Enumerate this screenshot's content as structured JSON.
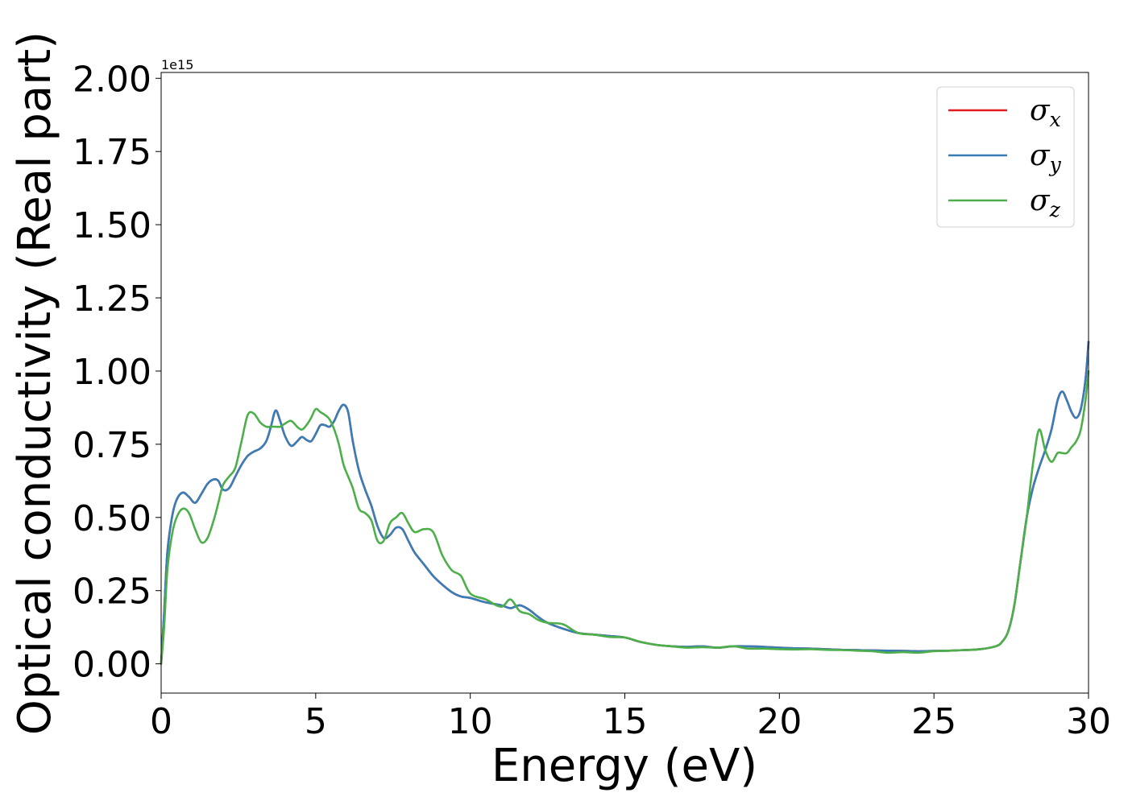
{
  "chart_data": {
    "type": "line",
    "title": "",
    "xlabel": "Energy (eV)",
    "ylabel": "Optical conductivity (Real part)",
    "y_offset_label": "1e15",
    "xlim": [
      0,
      30
    ],
    "ylim": [
      -0.1,
      2.02
    ],
    "x_ticks": [
      0,
      5,
      10,
      15,
      20,
      25,
      30
    ],
    "x_tick_labels": [
      "0",
      "5",
      "10",
      "15",
      "20",
      "25",
      "30"
    ],
    "y_ticks": [
      0.0,
      0.25,
      0.5,
      0.75,
      1.0,
      1.25,
      1.5,
      1.75,
      2.0
    ],
    "y_tick_labels": [
      "0.00",
      "0.25",
      "0.50",
      "0.75",
      "1.00",
      "1.25",
      "1.50",
      "1.75",
      "2.00"
    ],
    "grid": false,
    "legend_position": "top-right",
    "series": [
      {
        "name": "σx",
        "symbol": "σ",
        "subscript": "x",
        "color": "#e41a1c",
        "x": [
          0,
          0.1,
          0.2,
          0.35,
          0.5,
          0.7,
          0.9,
          1.1,
          1.3,
          1.5,
          1.7,
          1.85,
          2.0,
          2.2,
          2.4,
          2.6,
          2.8,
          3.0,
          3.2,
          3.4,
          3.55,
          3.7,
          3.85,
          4.0,
          4.2,
          4.4,
          4.55,
          4.7,
          4.85,
          5.0,
          5.15,
          5.3,
          5.45,
          5.6,
          5.75,
          5.9,
          6.05,
          6.2,
          6.4,
          6.6,
          6.8,
          7.0,
          7.2,
          7.4,
          7.6,
          7.8,
          8.0,
          8.2,
          8.5,
          8.8,
          9.1,
          9.4,
          9.7,
          10.0,
          10.5,
          11.0,
          11.3,
          11.6,
          11.9,
          12.2,
          12.5,
          13.0,
          13.5,
          14.0,
          14.5,
          15.0,
          15.5,
          16.0,
          16.5,
          17.0,
          17.5,
          18.0,
          18.5,
          19.0,
          19.5,
          20.0,
          20.5,
          21.0,
          21.5,
          22.0,
          22.5,
          23.0,
          23.5,
          24.0,
          24.5,
          25.0,
          25.5,
          26.0,
          26.5,
          27.0,
          27.2,
          27.4,
          27.6,
          27.8,
          28.0,
          28.2,
          28.4,
          28.6,
          28.8,
          29.0,
          29.15,
          29.3,
          29.45,
          29.6,
          29.75,
          29.9,
          30.0
        ],
        "y": [
          0.0,
          0.18,
          0.38,
          0.5,
          0.56,
          0.585,
          0.57,
          0.55,
          0.58,
          0.615,
          0.63,
          0.625,
          0.595,
          0.6,
          0.64,
          0.68,
          0.71,
          0.725,
          0.735,
          0.76,
          0.81,
          0.865,
          0.83,
          0.78,
          0.745,
          0.76,
          0.775,
          0.765,
          0.76,
          0.785,
          0.815,
          0.815,
          0.81,
          0.83,
          0.865,
          0.885,
          0.86,
          0.76,
          0.66,
          0.595,
          0.54,
          0.47,
          0.43,
          0.44,
          0.465,
          0.46,
          0.42,
          0.38,
          0.34,
          0.3,
          0.27,
          0.245,
          0.23,
          0.225,
          0.21,
          0.2,
          0.19,
          0.2,
          0.185,
          0.16,
          0.14,
          0.12,
          0.105,
          0.1,
          0.095,
          0.09,
          0.075,
          0.065,
          0.06,
          0.058,
          0.06,
          0.055,
          0.06,
          0.06,
          0.058,
          0.055,
          0.053,
          0.052,
          0.05,
          0.048,
          0.047,
          0.046,
          0.045,
          0.044,
          0.043,
          0.044,
          0.045,
          0.047,
          0.05,
          0.06,
          0.075,
          0.11,
          0.2,
          0.35,
          0.5,
          0.6,
          0.67,
          0.73,
          0.8,
          0.9,
          0.93,
          0.9,
          0.86,
          0.84,
          0.87,
          0.97,
          1.1
        ]
      },
      {
        "name": "σy",
        "symbol": "σ",
        "subscript": "y",
        "color": "#377eb8",
        "x": [
          0,
          0.1,
          0.2,
          0.35,
          0.5,
          0.7,
          0.9,
          1.1,
          1.3,
          1.5,
          1.7,
          1.85,
          2.0,
          2.2,
          2.4,
          2.6,
          2.8,
          3.0,
          3.2,
          3.4,
          3.55,
          3.7,
          3.85,
          4.0,
          4.2,
          4.4,
          4.55,
          4.7,
          4.85,
          5.0,
          5.15,
          5.3,
          5.45,
          5.6,
          5.75,
          5.9,
          6.05,
          6.2,
          6.4,
          6.6,
          6.8,
          7.0,
          7.2,
          7.4,
          7.6,
          7.8,
          8.0,
          8.2,
          8.5,
          8.8,
          9.1,
          9.4,
          9.7,
          10.0,
          10.5,
          11.0,
          11.3,
          11.6,
          11.9,
          12.2,
          12.5,
          13.0,
          13.5,
          14.0,
          14.5,
          15.0,
          15.5,
          16.0,
          16.5,
          17.0,
          17.5,
          18.0,
          18.5,
          19.0,
          19.5,
          20.0,
          20.5,
          21.0,
          21.5,
          22.0,
          22.5,
          23.0,
          23.5,
          24.0,
          24.5,
          25.0,
          25.5,
          26.0,
          26.5,
          27.0,
          27.2,
          27.4,
          27.6,
          27.8,
          28.0,
          28.2,
          28.4,
          28.6,
          28.8,
          29.0,
          29.15,
          29.3,
          29.45,
          29.6,
          29.75,
          29.9,
          30.0
        ],
        "y": [
          0.0,
          0.18,
          0.38,
          0.5,
          0.56,
          0.585,
          0.57,
          0.55,
          0.58,
          0.615,
          0.63,
          0.625,
          0.595,
          0.6,
          0.64,
          0.68,
          0.71,
          0.725,
          0.735,
          0.76,
          0.81,
          0.865,
          0.83,
          0.78,
          0.745,
          0.76,
          0.775,
          0.765,
          0.76,
          0.785,
          0.815,
          0.815,
          0.81,
          0.83,
          0.865,
          0.885,
          0.86,
          0.76,
          0.66,
          0.595,
          0.54,
          0.47,
          0.43,
          0.44,
          0.465,
          0.46,
          0.42,
          0.38,
          0.34,
          0.3,
          0.27,
          0.245,
          0.23,
          0.225,
          0.21,
          0.2,
          0.19,
          0.2,
          0.185,
          0.16,
          0.14,
          0.12,
          0.105,
          0.1,
          0.095,
          0.09,
          0.075,
          0.065,
          0.06,
          0.058,
          0.06,
          0.055,
          0.06,
          0.06,
          0.058,
          0.055,
          0.053,
          0.052,
          0.05,
          0.048,
          0.047,
          0.046,
          0.045,
          0.044,
          0.043,
          0.044,
          0.045,
          0.047,
          0.05,
          0.06,
          0.075,
          0.11,
          0.2,
          0.35,
          0.5,
          0.6,
          0.67,
          0.73,
          0.8,
          0.9,
          0.93,
          0.9,
          0.86,
          0.84,
          0.87,
          0.97,
          1.1
        ]
      },
      {
        "name": "σz",
        "symbol": "σ",
        "subscript": "z",
        "color": "#4daf4a",
        "x": [
          0,
          0.1,
          0.2,
          0.35,
          0.5,
          0.7,
          0.9,
          1.1,
          1.3,
          1.5,
          1.7,
          1.85,
          2.0,
          2.2,
          2.4,
          2.6,
          2.8,
          3.0,
          3.2,
          3.4,
          3.55,
          3.7,
          3.85,
          4.0,
          4.2,
          4.4,
          4.55,
          4.7,
          4.85,
          5.0,
          5.15,
          5.3,
          5.45,
          5.6,
          5.75,
          5.9,
          6.05,
          6.2,
          6.4,
          6.6,
          6.8,
          7.0,
          7.2,
          7.4,
          7.6,
          7.8,
          8.0,
          8.2,
          8.5,
          8.8,
          9.1,
          9.4,
          9.7,
          10.0,
          10.5,
          11.0,
          11.3,
          11.6,
          11.9,
          12.2,
          12.5,
          13.0,
          13.5,
          14.0,
          14.5,
          15.0,
          15.5,
          16.0,
          16.5,
          17.0,
          17.5,
          18.0,
          18.5,
          19.0,
          19.5,
          20.0,
          20.5,
          21.0,
          21.5,
          22.0,
          22.5,
          23.0,
          23.5,
          24.0,
          24.5,
          25.0,
          25.5,
          26.0,
          26.5,
          27.0,
          27.2,
          27.4,
          27.6,
          27.8,
          28.0,
          28.2,
          28.4,
          28.6,
          28.8,
          29.0,
          29.15,
          29.3,
          29.45,
          29.6,
          29.75,
          29.9,
          30.0
        ],
        "y": [
          0.0,
          0.13,
          0.32,
          0.44,
          0.5,
          0.53,
          0.515,
          0.46,
          0.415,
          0.43,
          0.49,
          0.55,
          0.61,
          0.64,
          0.67,
          0.76,
          0.85,
          0.855,
          0.825,
          0.81,
          0.81,
          0.81,
          0.81,
          0.82,
          0.83,
          0.81,
          0.8,
          0.815,
          0.84,
          0.87,
          0.86,
          0.85,
          0.835,
          0.8,
          0.75,
          0.68,
          0.64,
          0.6,
          0.53,
          0.515,
          0.49,
          0.42,
          0.42,
          0.48,
          0.5,
          0.515,
          0.48,
          0.45,
          0.46,
          0.45,
          0.37,
          0.32,
          0.3,
          0.24,
          0.22,
          0.195,
          0.22,
          0.18,
          0.17,
          0.15,
          0.14,
          0.135,
          0.105,
          0.1,
          0.092,
          0.09,
          0.075,
          0.065,
          0.06,
          0.055,
          0.057,
          0.055,
          0.06,
          0.052,
          0.052,
          0.05,
          0.049,
          0.05,
          0.048,
          0.047,
          0.045,
          0.043,
          0.038,
          0.04,
          0.038,
          0.043,
          0.045,
          0.047,
          0.05,
          0.06,
          0.075,
          0.11,
          0.2,
          0.35,
          0.5,
          0.68,
          0.8,
          0.73,
          0.69,
          0.72,
          0.72,
          0.72,
          0.74,
          0.76,
          0.8,
          0.9,
          1.0
        ]
      }
    ]
  }
}
